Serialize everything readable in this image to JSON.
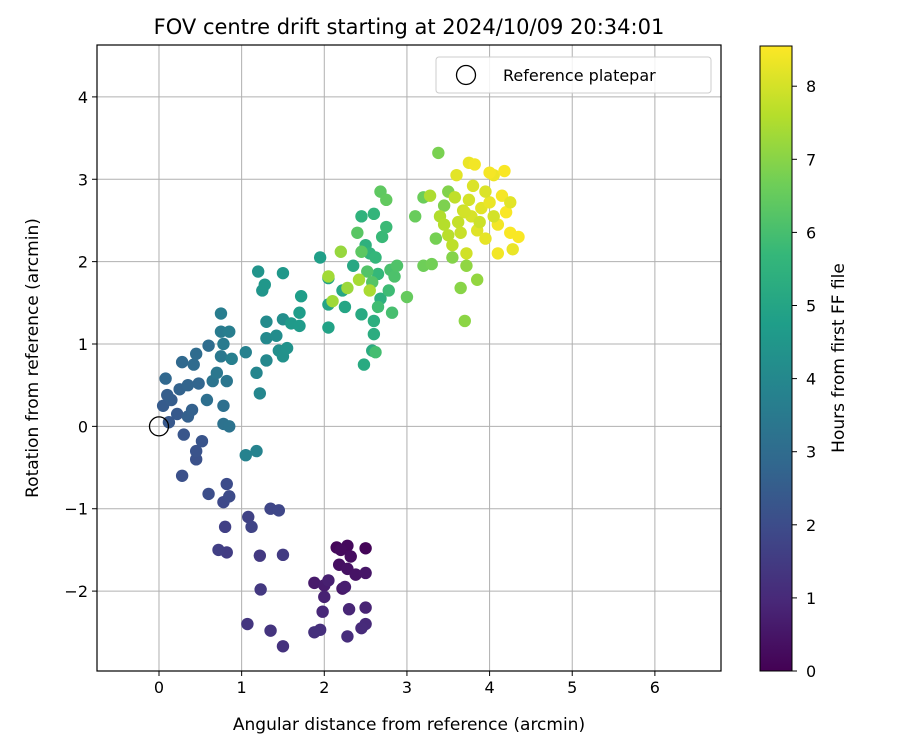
{
  "chart_data": {
    "type": "scatter",
    "title": "FOV centre drift starting at 2024/10/09 20:34:01",
    "xlabel": "Angular distance from reference (arcmin)",
    "ylabel": "Rotation from reference (arcmin)",
    "xlim": [
      -0.75,
      6.8
    ],
    "ylim": [
      -2.97,
      4.63
    ],
    "x_ticks": [
      0,
      1,
      2,
      3,
      4,
      5,
      6
    ],
    "y_ticks": [
      -2,
      -1,
      0,
      1,
      2,
      3,
      4
    ],
    "x_tick_labels": [
      "0",
      "1",
      "2",
      "3",
      "4",
      "5",
      "6"
    ],
    "y_tick_labels": [
      "−2",
      "−1",
      "0",
      "1",
      "2",
      "3",
      "4"
    ],
    "grid": true,
    "legend": {
      "position": "top-right",
      "label": "Reference platepar"
    },
    "reference_point": {
      "x": 0,
      "y": 0
    },
    "colorbar": {
      "label": "Hours from first FF file",
      "min": 0,
      "max": 8.55,
      "ticks": [
        0,
        1,
        2,
        3,
        4,
        5,
        6,
        7,
        8
      ],
      "tick_labels": [
        "0",
        "1",
        "2",
        "3",
        "4",
        "5",
        "6",
        "7",
        "8"
      ],
      "colormap": "viridis",
      "colors": [
        "#440154",
        "#482878",
        "#3e4989",
        "#31688e",
        "#26828e",
        "#1f9e89",
        "#35b779",
        "#6ece58",
        "#b5de2b",
        "#fde725"
      ]
    },
    "points": [
      {
        "x": 2.5,
        "y": -1.48,
        "h": 0.1
      },
      {
        "x": 2.15,
        "y": -1.47,
        "h": 0.15
      },
      {
        "x": 2.28,
        "y": -1.45,
        "h": 0.2
      },
      {
        "x": 2.2,
        "y": -1.5,
        "h": 0.25
      },
      {
        "x": 2.32,
        "y": -1.58,
        "h": 0.3
      },
      {
        "x": 2.18,
        "y": -1.68,
        "h": 0.35
      },
      {
        "x": 2.28,
        "y": -1.73,
        "h": 0.4
      },
      {
        "x": 2.38,
        "y": -1.8,
        "h": 0.45
      },
      {
        "x": 2.5,
        "y": -1.78,
        "h": 0.5
      },
      {
        "x": 2.22,
        "y": -1.97,
        "h": 0.55
      },
      {
        "x": 1.88,
        "y": -1.9,
        "h": 0.6
      },
      {
        "x": 2.0,
        "y": -1.93,
        "h": 0.65
      },
      {
        "x": 2.25,
        "y": -1.95,
        "h": 0.7
      },
      {
        "x": 2.05,
        "y": -1.87,
        "h": 0.75
      },
      {
        "x": 2.0,
        "y": -2.07,
        "h": 0.8
      },
      {
        "x": 2.5,
        "y": -2.2,
        "h": 0.85
      },
      {
        "x": 2.3,
        "y": -2.22,
        "h": 0.9
      },
      {
        "x": 1.98,
        "y": -2.25,
        "h": 0.95
      },
      {
        "x": 2.5,
        "y": -2.4,
        "h": 1.0
      },
      {
        "x": 2.45,
        "y": -2.45,
        "h": 1.05
      },
      {
        "x": 2.28,
        "y": -2.55,
        "h": 1.1
      },
      {
        "x": 1.95,
        "y": -2.47,
        "h": 1.15
      },
      {
        "x": 1.88,
        "y": -2.5,
        "h": 1.2
      },
      {
        "x": 1.5,
        "y": -2.67,
        "h": 1.25
      },
      {
        "x": 1.35,
        "y": -2.48,
        "h": 1.3
      },
      {
        "x": 1.07,
        "y": -2.4,
        "h": 1.35
      },
      {
        "x": 1.23,
        "y": -1.98,
        "h": 1.4
      },
      {
        "x": 1.22,
        "y": -1.57,
        "h": 1.45
      },
      {
        "x": 1.5,
        "y": -1.56,
        "h": 1.5
      },
      {
        "x": 0.82,
        "y": -1.53,
        "h": 1.55
      },
      {
        "x": 0.72,
        "y": -1.5,
        "h": 1.6
      },
      {
        "x": 0.8,
        "y": -1.22,
        "h": 1.65
      },
      {
        "x": 1.08,
        "y": -1.1,
        "h": 1.7
      },
      {
        "x": 1.12,
        "y": -1.22,
        "h": 1.75
      },
      {
        "x": 1.35,
        "y": -1.0,
        "h": 1.8
      },
      {
        "x": 1.45,
        "y": -1.02,
        "h": 1.85
      },
      {
        "x": 0.78,
        "y": -0.92,
        "h": 1.9
      },
      {
        "x": 0.85,
        "y": -0.85,
        "h": 1.95
      },
      {
        "x": 0.82,
        "y": -0.7,
        "h": 2.0
      },
      {
        "x": 0.6,
        "y": -0.82,
        "h": 2.05
      },
      {
        "x": 0.28,
        "y": -0.6,
        "h": 2.1
      },
      {
        "x": 0.45,
        "y": -0.4,
        "h": 2.15
      },
      {
        "x": 0.45,
        "y": -0.3,
        "h": 2.2
      },
      {
        "x": 0.52,
        "y": -0.18,
        "h": 2.25
      },
      {
        "x": 0.3,
        "y": -0.1,
        "h": 2.3
      },
      {
        "x": 0.12,
        "y": 0.05,
        "h": 2.35
      },
      {
        "x": 0.22,
        "y": 0.15,
        "h": 2.4
      },
      {
        "x": 0.05,
        "y": 0.25,
        "h": 2.45
      },
      {
        "x": 0.15,
        "y": 0.32,
        "h": 2.5
      },
      {
        "x": 0.1,
        "y": 0.38,
        "h": 2.55
      },
      {
        "x": 0.35,
        "y": 0.12,
        "h": 2.6
      },
      {
        "x": 0.4,
        "y": 0.2,
        "h": 2.65
      },
      {
        "x": 0.25,
        "y": 0.45,
        "h": 2.7
      },
      {
        "x": 0.35,
        "y": 0.5,
        "h": 2.75
      },
      {
        "x": 0.48,
        "y": 0.52,
        "h": 2.8
      },
      {
        "x": 0.08,
        "y": 0.58,
        "h": 2.85
      },
      {
        "x": 0.28,
        "y": 0.78,
        "h": 2.9
      },
      {
        "x": 0.42,
        "y": 0.75,
        "h": 2.95
      },
      {
        "x": 0.45,
        "y": 0.88,
        "h": 3.0
      },
      {
        "x": 0.6,
        "y": 0.98,
        "h": 3.05
      },
      {
        "x": 0.58,
        "y": 0.32,
        "h": 3.1
      },
      {
        "x": 0.78,
        "y": 0.25,
        "h": 3.15
      },
      {
        "x": 0.78,
        "y": 0.03,
        "h": 3.2
      },
      {
        "x": 0.85,
        "y": 0.0,
        "h": 3.25
      },
      {
        "x": 0.65,
        "y": 0.55,
        "h": 3.3
      },
      {
        "x": 0.82,
        "y": 0.55,
        "h": 3.35
      },
      {
        "x": 0.7,
        "y": 0.65,
        "h": 3.4
      },
      {
        "x": 0.75,
        "y": 0.85,
        "h": 3.45
      },
      {
        "x": 0.78,
        "y": 1.0,
        "h": 3.5
      },
      {
        "x": 0.75,
        "y": 1.15,
        "h": 3.55
      },
      {
        "x": 0.75,
        "y": 1.37,
        "h": 3.6
      },
      {
        "x": 0.85,
        "y": 1.15,
        "h": 3.65
      },
      {
        "x": 0.88,
        "y": 0.82,
        "h": 3.7
      },
      {
        "x": 1.05,
        "y": 0.9,
        "h": 3.75
      },
      {
        "x": 1.05,
        "y": -0.35,
        "h": 3.8
      },
      {
        "x": 1.18,
        "y": -0.3,
        "h": 3.85
      },
      {
        "x": 1.18,
        "y": 0.65,
        "h": 3.9
      },
      {
        "x": 1.22,
        "y": 0.4,
        "h": 3.95
      },
      {
        "x": 1.3,
        "y": 0.8,
        "h": 4.0
      },
      {
        "x": 1.3,
        "y": 1.07,
        "h": 4.05
      },
      {
        "x": 1.3,
        "y": 1.27,
        "h": 4.1
      },
      {
        "x": 1.42,
        "y": 1.1,
        "h": 4.15
      },
      {
        "x": 1.5,
        "y": 1.3,
        "h": 4.2
      },
      {
        "x": 1.45,
        "y": 0.92,
        "h": 4.25
      },
      {
        "x": 1.5,
        "y": 0.85,
        "h": 4.3
      },
      {
        "x": 1.55,
        "y": 0.95,
        "h": 4.35
      },
      {
        "x": 1.2,
        "y": 1.88,
        "h": 4.4
      },
      {
        "x": 1.25,
        "y": 1.65,
        "h": 4.45
      },
      {
        "x": 1.28,
        "y": 1.72,
        "h": 4.5
      },
      {
        "x": 1.5,
        "y": 1.86,
        "h": 4.55
      },
      {
        "x": 1.6,
        "y": 1.25,
        "h": 4.6
      },
      {
        "x": 1.7,
        "y": 1.22,
        "h": 4.65
      },
      {
        "x": 1.7,
        "y": 1.38,
        "h": 4.7
      },
      {
        "x": 1.72,
        "y": 1.58,
        "h": 4.75
      },
      {
        "x": 1.95,
        "y": 2.05,
        "h": 4.8
      },
      {
        "x": 2.05,
        "y": 1.8,
        "h": 4.85
      },
      {
        "x": 2.05,
        "y": 1.2,
        "h": 4.9
      },
      {
        "x": 2.05,
        "y": 1.48,
        "h": 4.95
      },
      {
        "x": 2.25,
        "y": 1.45,
        "h": 5.0
      },
      {
        "x": 2.22,
        "y": 1.65,
        "h": 5.05
      },
      {
        "x": 2.35,
        "y": 1.95,
        "h": 5.1
      },
      {
        "x": 2.45,
        "y": 1.36,
        "h": 5.15
      },
      {
        "x": 2.48,
        "y": 0.75,
        "h": 5.2
      },
      {
        "x": 2.58,
        "y": 0.92,
        "h": 5.25
      },
      {
        "x": 2.6,
        "y": 1.12,
        "h": 5.3
      },
      {
        "x": 2.6,
        "y": 1.28,
        "h": 5.35
      },
      {
        "x": 2.68,
        "y": 1.55,
        "h": 5.4
      },
      {
        "x": 2.5,
        "y": 2.2,
        "h": 5.45
      },
      {
        "x": 2.45,
        "y": 2.55,
        "h": 5.5
      },
      {
        "x": 2.55,
        "y": 2.1,
        "h": 5.55
      },
      {
        "x": 2.6,
        "y": 2.58,
        "h": 5.6
      },
      {
        "x": 2.62,
        "y": 2.05,
        "h": 5.65
      },
      {
        "x": 2.65,
        "y": 1.85,
        "h": 5.7
      },
      {
        "x": 2.7,
        "y": 2.3,
        "h": 5.75
      },
      {
        "x": 2.75,
        "y": 2.42,
        "h": 5.8
      },
      {
        "x": 2.78,
        "y": 1.65,
        "h": 5.85
      },
      {
        "x": 2.65,
        "y": 1.45,
        "h": 5.9
      },
      {
        "x": 2.62,
        "y": 0.9,
        "h": 5.95
      },
      {
        "x": 2.82,
        "y": 1.38,
        "h": 6.0
      },
      {
        "x": 2.8,
        "y": 1.9,
        "h": 6.05
      },
      {
        "x": 2.85,
        "y": 1.82,
        "h": 6.1
      },
      {
        "x": 2.88,
        "y": 1.95,
        "h": 6.15
      },
      {
        "x": 2.52,
        "y": 1.88,
        "h": 6.2
      },
      {
        "x": 2.58,
        "y": 1.75,
        "h": 6.25
      },
      {
        "x": 2.4,
        "y": 2.35,
        "h": 6.3
      },
      {
        "x": 2.45,
        "y": 2.12,
        "h": 6.35
      },
      {
        "x": 2.68,
        "y": 2.85,
        "h": 6.4
      },
      {
        "x": 2.75,
        "y": 2.75,
        "h": 6.45
      },
      {
        "x": 3.0,
        "y": 1.57,
        "h": 6.5
      },
      {
        "x": 3.1,
        "y": 2.55,
        "h": 6.55
      },
      {
        "x": 3.2,
        "y": 2.78,
        "h": 6.6
      },
      {
        "x": 3.2,
        "y": 1.95,
        "h": 6.65
      },
      {
        "x": 3.3,
        "y": 1.97,
        "h": 6.7
      },
      {
        "x": 3.35,
        "y": 2.28,
        "h": 6.75
      },
      {
        "x": 3.38,
        "y": 3.32,
        "h": 6.8
      },
      {
        "x": 3.45,
        "y": 2.68,
        "h": 6.85
      },
      {
        "x": 3.5,
        "y": 2.85,
        "h": 6.9
      },
      {
        "x": 3.55,
        "y": 2.05,
        "h": 6.95
      },
      {
        "x": 3.65,
        "y": 1.68,
        "h": 7.0
      },
      {
        "x": 3.7,
        "y": 1.28,
        "h": 7.05
      },
      {
        "x": 3.72,
        "y": 1.95,
        "h": 7.1
      },
      {
        "x": 3.85,
        "y": 1.78,
        "h": 7.15
      },
      {
        "x": 2.2,
        "y": 2.12,
        "h": 7.2
      },
      {
        "x": 2.28,
        "y": 1.68,
        "h": 7.25
      },
      {
        "x": 2.1,
        "y": 1.52,
        "h": 7.3
      },
      {
        "x": 2.05,
        "y": 1.82,
        "h": 7.35
      },
      {
        "x": 2.42,
        "y": 1.78,
        "h": 7.4
      },
      {
        "x": 2.55,
        "y": 1.65,
        "h": 7.45
      },
      {
        "x": 3.28,
        "y": 2.8,
        "h": 7.5
      },
      {
        "x": 3.4,
        "y": 2.55,
        "h": 7.55
      },
      {
        "x": 3.45,
        "y": 2.45,
        "h": 7.6
      },
      {
        "x": 3.5,
        "y": 2.32,
        "h": 7.65
      },
      {
        "x": 3.55,
        "y": 2.2,
        "h": 7.7
      },
      {
        "x": 3.58,
        "y": 2.78,
        "h": 7.75
      },
      {
        "x": 3.62,
        "y": 2.48,
        "h": 7.8
      },
      {
        "x": 3.65,
        "y": 2.35,
        "h": 7.85
      },
      {
        "x": 3.68,
        "y": 2.62,
        "h": 7.9
      },
      {
        "x": 3.72,
        "y": 2.1,
        "h": 7.95
      },
      {
        "x": 3.75,
        "y": 2.75,
        "h": 8.0
      },
      {
        "x": 3.78,
        "y": 2.55,
        "h": 8.05
      },
      {
        "x": 3.8,
        "y": 2.92,
        "h": 8.1
      },
      {
        "x": 3.85,
        "y": 2.38,
        "h": 8.15
      },
      {
        "x": 3.9,
        "y": 2.65,
        "h": 8.2
      },
      {
        "x": 3.95,
        "y": 2.28,
        "h": 8.25
      },
      {
        "x": 4.0,
        "y": 2.72,
        "h": 8.3
      },
      {
        "x": 4.05,
        "y": 3.05,
        "h": 8.35
      },
      {
        "x": 4.1,
        "y": 2.45,
        "h": 8.4
      },
      {
        "x": 4.15,
        "y": 2.8,
        "h": 8.45
      },
      {
        "x": 4.2,
        "y": 2.6,
        "h": 8.5
      },
      {
        "x": 4.25,
        "y": 2.35,
        "h": 8.5
      },
      {
        "x": 4.35,
        "y": 2.3,
        "h": 8.5
      },
      {
        "x": 3.6,
        "y": 3.05,
        "h": 8.2
      },
      {
        "x": 3.75,
        "y": 3.2,
        "h": 8.3
      },
      {
        "x": 3.82,
        "y": 3.18,
        "h": 8.4
      },
      {
        "x": 4.0,
        "y": 3.08,
        "h": 8.45
      },
      {
        "x": 4.18,
        "y": 3.1,
        "h": 8.5
      },
      {
        "x": 4.1,
        "y": 2.1,
        "h": 8.4
      },
      {
        "x": 4.28,
        "y": 2.15,
        "h": 8.3
      },
      {
        "x": 3.88,
        "y": 2.48,
        "h": 7.9
      },
      {
        "x": 4.05,
        "y": 2.55,
        "h": 8.0
      },
      {
        "x": 3.95,
        "y": 2.85,
        "h": 8.1
      },
      {
        "x": 4.25,
        "y": 2.72,
        "h": 8.2
      },
      {
        "x": 3.7,
        "y": 2.6,
        "h": 8.0
      }
    ]
  }
}
